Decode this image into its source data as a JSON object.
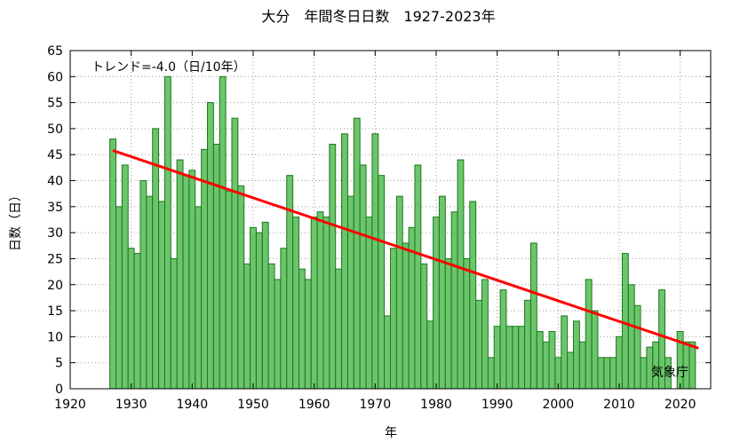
{
  "chart_data": {
    "type": "bar",
    "title": "大分　年間冬日日数　1927-2023年",
    "xlabel": "年",
    "ylabel": "日数（日）",
    "xlim": [
      1920,
      2025
    ],
    "ylim": [
      0,
      65
    ],
    "xticks": [
      1920,
      1930,
      1940,
      1950,
      1960,
      1970,
      1980,
      1990,
      2000,
      2010,
      2020
    ],
    "yticks": [
      0,
      5,
      10,
      15,
      20,
      25,
      30,
      35,
      40,
      45,
      50,
      55,
      60,
      65
    ],
    "grid": true,
    "years": [
      1927,
      1928,
      1929,
      1930,
      1931,
      1932,
      1933,
      1934,
      1935,
      1936,
      1937,
      1938,
      1939,
      1940,
      1941,
      1942,
      1943,
      1944,
      1945,
      1946,
      1947,
      1948,
      1949,
      1950,
      1951,
      1952,
      1953,
      1954,
      1955,
      1956,
      1957,
      1958,
      1959,
      1960,
      1961,
      1962,
      1963,
      1964,
      1965,
      1966,
      1967,
      1968,
      1969,
      1970,
      1971,
      1972,
      1973,
      1974,
      1975,
      1976,
      1977,
      1978,
      1979,
      1980,
      1981,
      1982,
      1983,
      1984,
      1985,
      1986,
      1987,
      1988,
      1989,
      1990,
      1991,
      1992,
      1993,
      1994,
      1995,
      1996,
      1997,
      1998,
      1999,
      2000,
      2001,
      2002,
      2003,
      2004,
      2005,
      2006,
      2007,
      2008,
      2009,
      2010,
      2011,
      2012,
      2013,
      2014,
      2015,
      2016,
      2017,
      2018,
      2019,
      2020,
      2021,
      2022,
      2023
    ],
    "values": [
      48,
      35,
      43,
      27,
      26,
      40,
      37,
      50,
      36,
      60,
      25,
      44,
      41,
      42,
      35,
      46,
      55,
      47,
      60,
      38,
      52,
      39,
      24,
      31,
      30,
      32,
      24,
      21,
      27,
      41,
      33,
      23,
      21,
      33,
      34,
      33,
      47,
      23,
      49,
      37,
      52,
      43,
      33,
      49,
      41,
      14,
      27,
      37,
      28,
      31,
      43,
      24,
      13,
      33,
      37,
      25,
      34,
      44,
      25,
      36,
      17,
      21,
      6,
      12,
      19,
      12,
      12,
      12,
      17,
      28,
      11,
      9,
      11,
      6,
      14,
      7,
      13,
      9,
      21,
      15,
      6,
      6,
      6,
      10,
      26,
      20,
      16,
      6,
      8,
      9,
      19,
      6,
      0,
      11,
      9,
      9,
      0
    ],
    "trend": {
      "label": "トレンド=-4.0（日/10年）",
      "start": [
        1927,
        45.8
      ],
      "end": [
        2023,
        7.8
      ],
      "color": "#ff0000"
    },
    "bar_color": "#6cc46c",
    "bar_edge_color": "#1a7a1a"
  },
  "source_label": "気象庁"
}
